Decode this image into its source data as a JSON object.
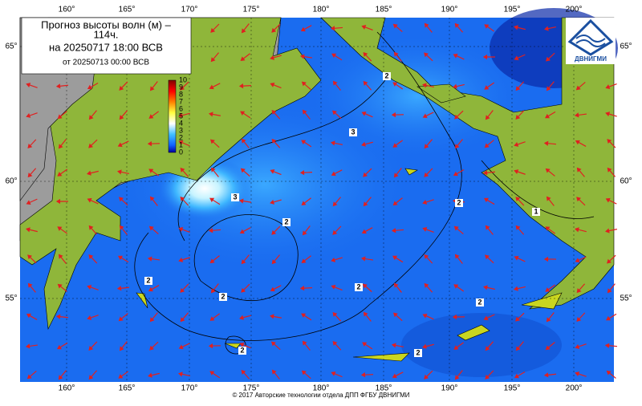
{
  "title": {
    "line1": "Прогноз высоты волн (м) –",
    "line2": "114ч.",
    "line3": "на 20250717 18:00 ВСВ",
    "line4": "от 20250713 00:00 ВСВ"
  },
  "logo": "ДВНИГМИ",
  "longitudes": [
    "160°",
    "165°",
    "170°",
    "175°",
    "180°",
    "185°",
    "190°",
    "195°",
    "200°"
  ],
  "latitudes": [
    "65°",
    "60°",
    "55°"
  ],
  "colorbar": {
    "ticks": [
      10,
      9,
      8,
      7,
      6,
      5,
      4,
      3,
      2,
      1,
      0
    ]
  },
  "contour_labels": [
    "2",
    "3",
    "3",
    "2",
    "2",
    "2",
    "2",
    "2",
    "1",
    "2",
    "2",
    "2"
  ],
  "footer": "© 2017 Авторские технологии отдела ДПП ФГБУ ДВНИГМИ"
}
